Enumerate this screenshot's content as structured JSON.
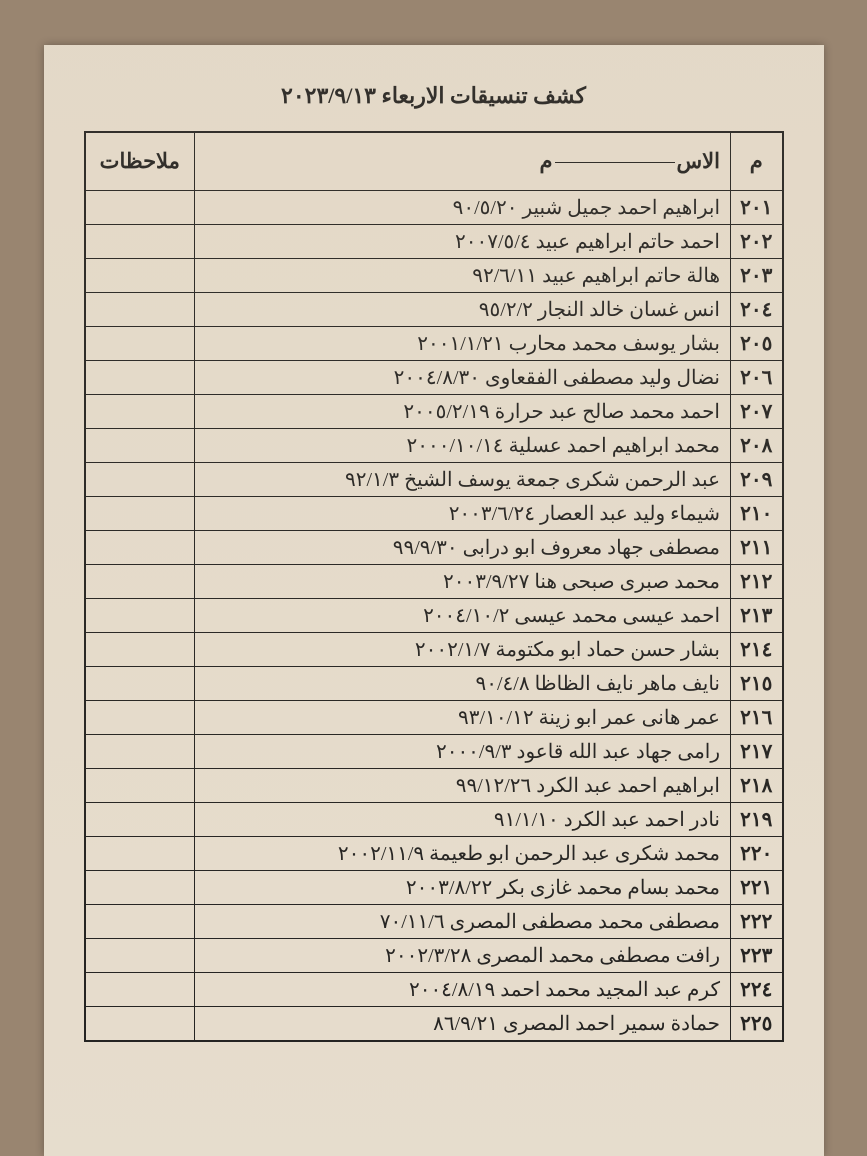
{
  "document": {
    "title": "كشف تنسيقات الاربعاء ٢٠٢٣/٩/١٣",
    "background_color": "#998570",
    "page_color": "#e8dfd0",
    "border_color": "#1a1a1a",
    "text_color": "#1a1a1a",
    "title_fontsize": 22,
    "cell_fontsize": 20
  },
  "table": {
    "columns": {
      "idx": "م",
      "name_prefix": "الاس",
      "name_suffix": "م",
      "notes": "ملاحظات"
    },
    "rows": [
      {
        "idx": "٢٠١",
        "name": "ابراهيم احمد جميل شبير ٩٠/٥/٢٠",
        "notes": ""
      },
      {
        "idx": "٢٠٢",
        "name": "احمد حاتم ابراهيم عبيد ٢٠٠٧/٥/٤",
        "notes": ""
      },
      {
        "idx": "٢٠٣",
        "name": "هالة حاتم ابراهيم عبيد ٩٢/٦/١١",
        "notes": ""
      },
      {
        "idx": "٢٠٤",
        "name": "انس غسان خالد النجار ٩٥/٢/٢",
        "notes": ""
      },
      {
        "idx": "٢٠٥",
        "name": "بشار يوسف محمد محارب ٢٠٠١/١/٢١",
        "notes": ""
      },
      {
        "idx": "٢٠٦",
        "name": "نضال وليد مصطفى الفقعاوى ٢٠٠٤/٨/٣٠",
        "notes": ""
      },
      {
        "idx": "٢٠٧",
        "name": "احمد محمد صالح عبد حرارة ٢٠٠٥/٢/١٩",
        "notes": ""
      },
      {
        "idx": "٢٠٨",
        "name": "محمد ابراهيم احمد عسلية ٢٠٠٠/١٠/١٤",
        "notes": ""
      },
      {
        "idx": "٢٠٩",
        "name": "عبد الرحمن شكرى جمعة يوسف الشيخ ٩٢/١/٣",
        "notes": ""
      },
      {
        "idx": "٢١٠",
        "name": "شيماء وليد عبد العصار ٢٠٠٣/٦/٢٤",
        "notes": ""
      },
      {
        "idx": "٢١١",
        "name": "مصطفى جهاد معروف ابو درابى ٩٩/٩/٣٠",
        "notes": ""
      },
      {
        "idx": "٢١٢",
        "name": "محمد صبرى صبحى هنا ٢٠٠٣/٩/٢٧",
        "notes": ""
      },
      {
        "idx": "٢١٣",
        "name": "احمد عيسى محمد عيسى ٢٠٠٤/١٠/٢",
        "notes": ""
      },
      {
        "idx": "٢١٤",
        "name": "بشار حسن حماد ابو مكتومة ٢٠٠٢/١/٧",
        "notes": ""
      },
      {
        "idx": "٢١٥",
        "name": "نايف ماهر نايف الظاظا ٩٠/٤/٨",
        "notes": ""
      },
      {
        "idx": "٢١٦",
        "name": "عمر هانى عمر ابو زينة ٩٣/١٠/١٢",
        "notes": ""
      },
      {
        "idx": "٢١٧",
        "name": "رامى جهاد عبد الله قاعود ٢٠٠٠/٩/٣",
        "notes": ""
      },
      {
        "idx": "٢١٨",
        "name": "ابراهيم احمد عبد الكرد ٩٩/١٢/٢٦",
        "notes": ""
      },
      {
        "idx": "٢١٩",
        "name": "نادر احمد عبد الكرد ٩١/١/١٠",
        "notes": ""
      },
      {
        "idx": "٢٢٠",
        "name": "محمد شكرى عبد الرحمن ابو طعيمة ٢٠٠٢/١١/٩",
        "notes": ""
      },
      {
        "idx": "٢٢١",
        "name": "محمد بسام محمد غازى بكر ٢٠٠٣/٨/٢٢",
        "notes": ""
      },
      {
        "idx": "٢٢٢",
        "name": "مصطفى محمد مصطفى المصرى ٧٠/١١/٦",
        "notes": ""
      },
      {
        "idx": "٢٢٣",
        "name": "رافت مصطفى محمد المصرى ٢٠٠٢/٣/٢٨",
        "notes": ""
      },
      {
        "idx": "٢٢٤",
        "name": "كرم عبد المجيد محمد احمد ٢٠٠٤/٨/١٩",
        "notes": ""
      },
      {
        "idx": "٢٢٥",
        "name": "حمادة سمير احمد المصرى ٨٦/٩/٢١",
        "notes": ""
      }
    ]
  }
}
